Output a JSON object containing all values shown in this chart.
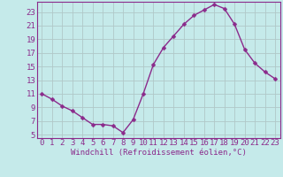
{
  "x": [
    0,
    1,
    2,
    3,
    4,
    5,
    6,
    7,
    8,
    9,
    10,
    11,
    12,
    13,
    14,
    15,
    16,
    17,
    18,
    19,
    20,
    21,
    22,
    23
  ],
  "y": [
    11,
    10.2,
    9.2,
    8.5,
    7.5,
    6.5,
    6.5,
    6.3,
    5.3,
    7.2,
    11,
    15.3,
    17.8,
    19.5,
    21.2,
    22.5,
    23.3,
    24.1,
    23.5,
    21.2,
    17.5,
    15.5,
    14.2,
    13.2
  ],
  "line_color": "#8b2a8b",
  "marker": "D",
  "marker_size": 2.5,
  "bg_color": "#c5eaea",
  "grid_color": "#b0c8c8",
  "xlabel": "Windchill (Refroidissement éolien,°C)",
  "xlabel_fontsize": 6.5,
  "xtick_labels": [
    "0",
    "1",
    "2",
    "3",
    "4",
    "5",
    "6",
    "7",
    "8",
    "9",
    "10",
    "11",
    "12",
    "13",
    "14",
    "15",
    "16",
    "17",
    "18",
    "19",
    "20",
    "21",
    "22",
    "23"
  ],
  "ytick_labels": [
    "5",
    "7",
    "9",
    "11",
    "13",
    "15",
    "17",
    "19",
    "21",
    "23"
  ],
  "ytick_values": [
    5,
    7,
    9,
    11,
    13,
    15,
    17,
    19,
    21,
    23
  ],
  "xlim": [
    -0.5,
    23.5
  ],
  "ylim": [
    4.5,
    24.5
  ],
  "tick_color": "#8b2a8b",
  "tick_fontsize": 6.5,
  "line_width": 1.0
}
